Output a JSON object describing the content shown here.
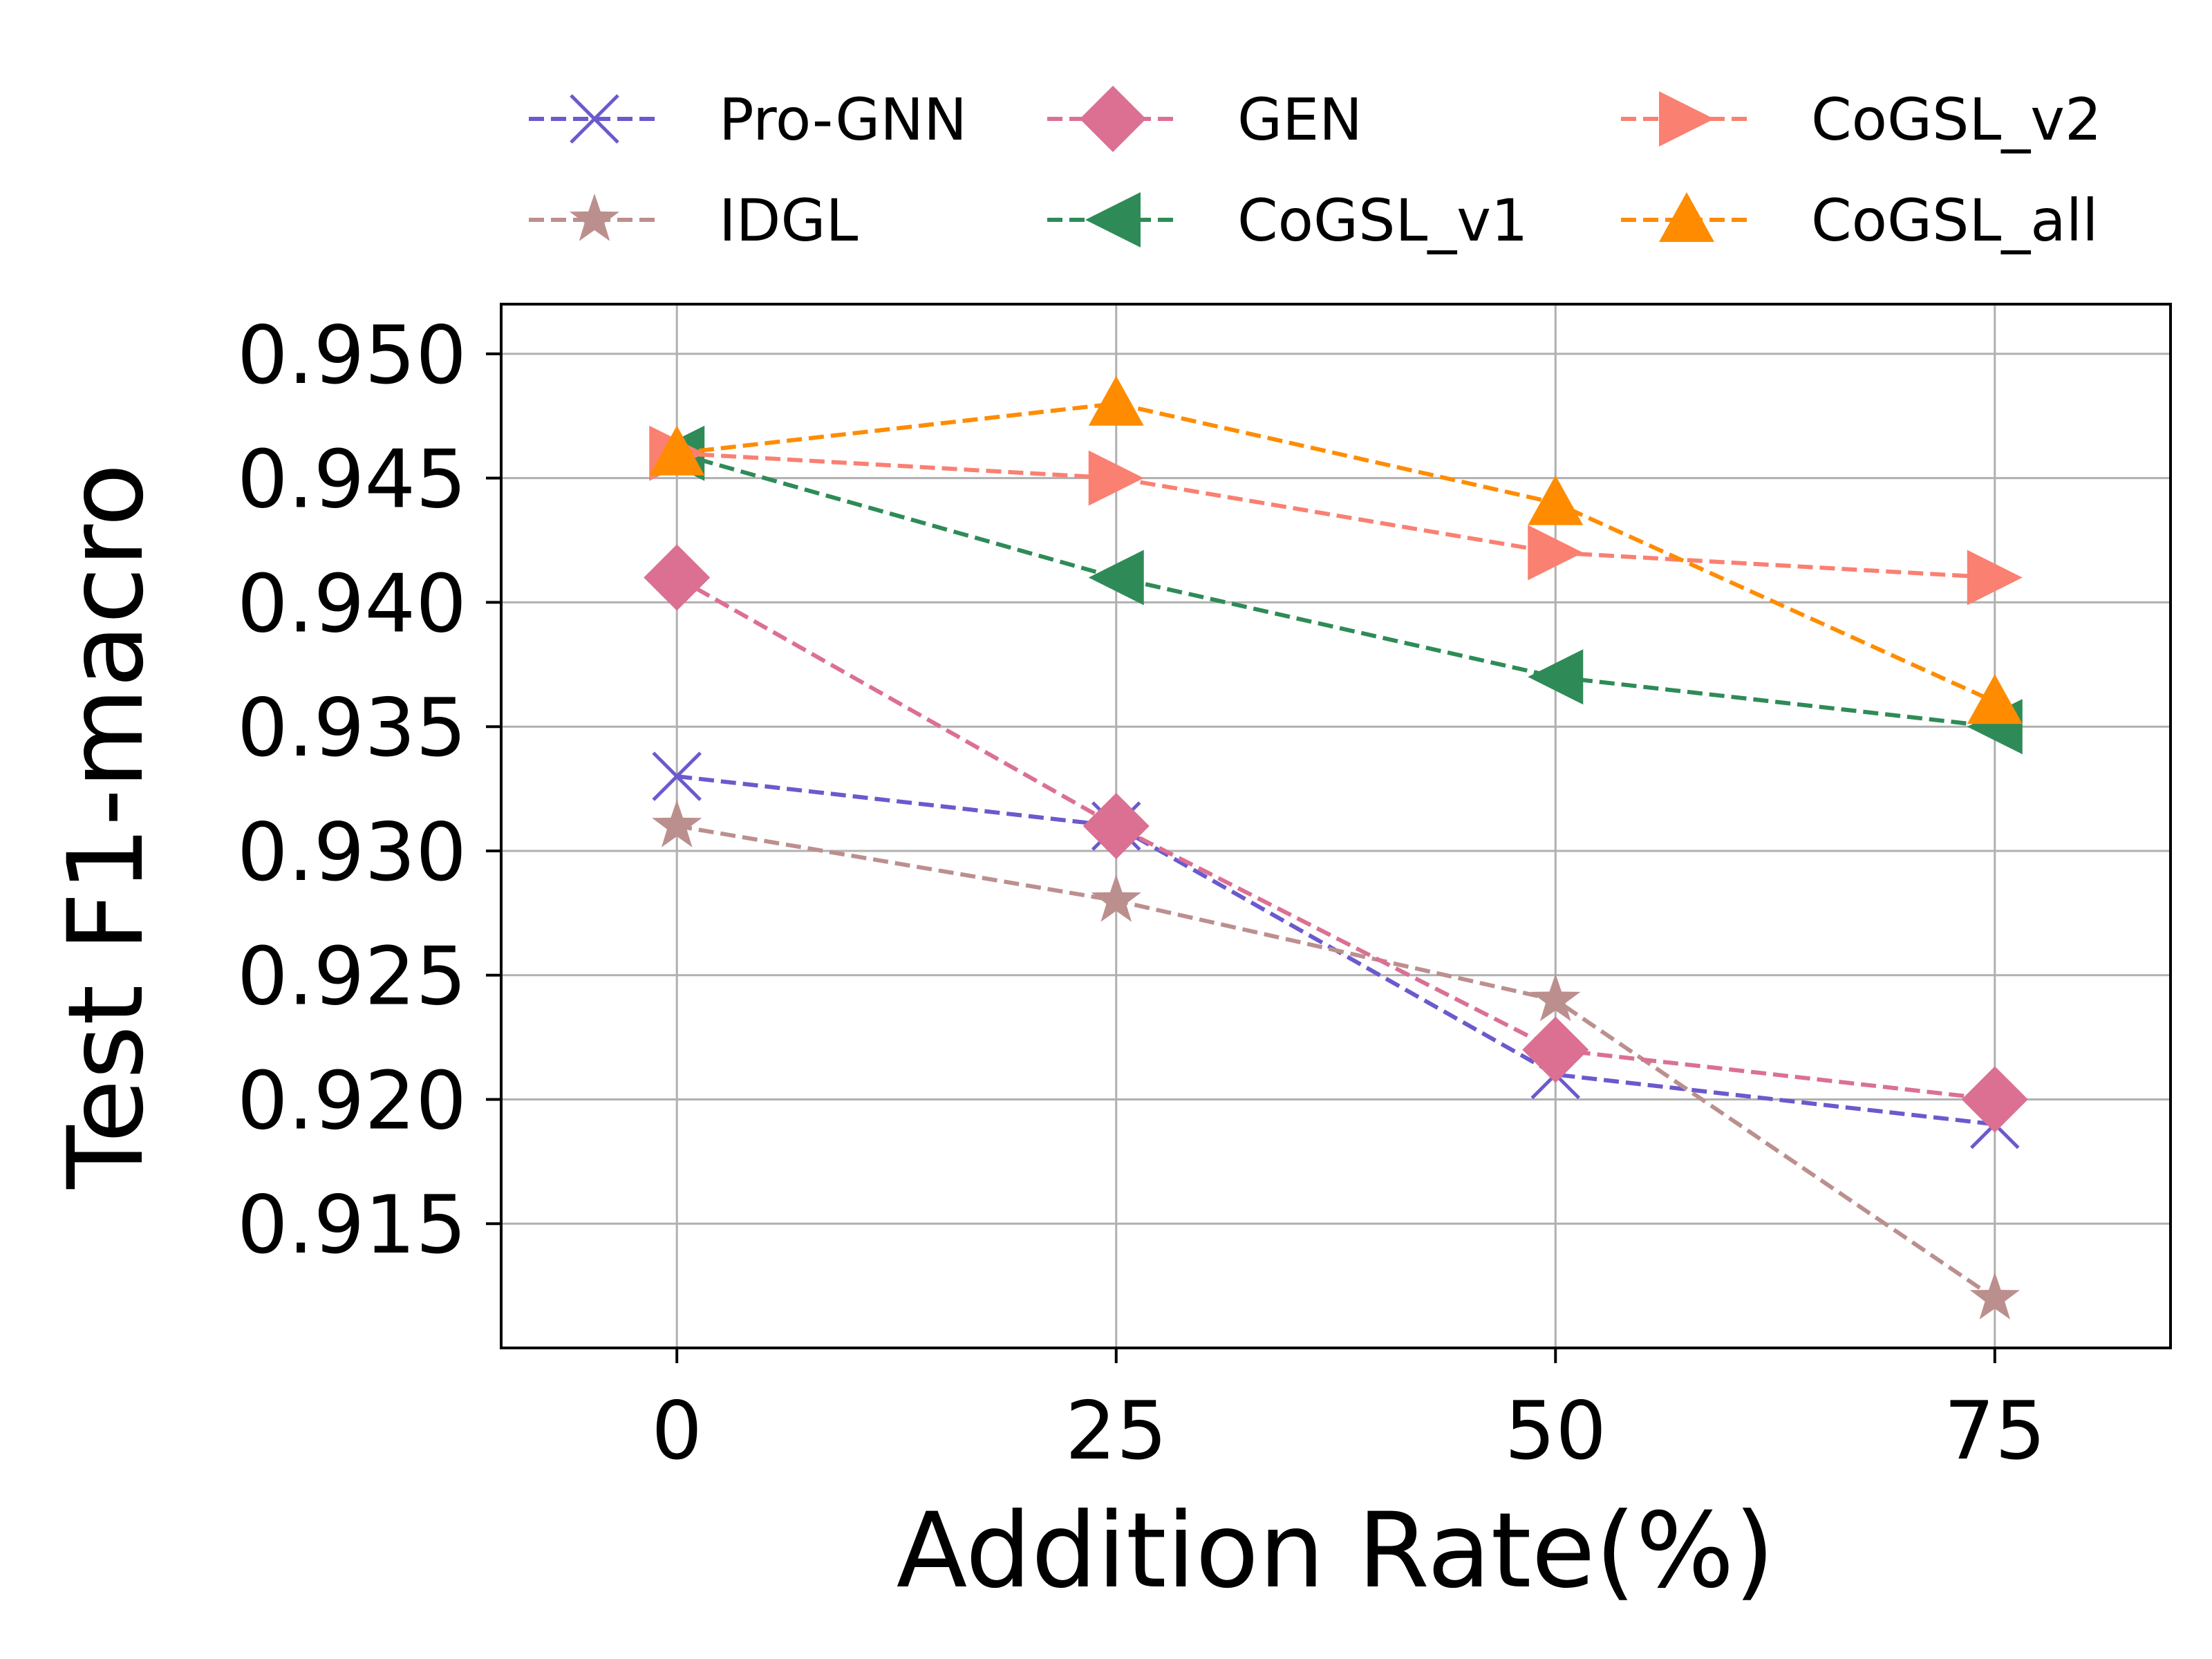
{
  "chart_data": {
    "type": "line",
    "title": "",
    "xlabel": "Addition Rate(%)",
    "ylabel": "Test F1-macro",
    "x": [
      0,
      25,
      50,
      75
    ],
    "xlim": [
      -10,
      85
    ],
    "ylim": [
      0.91,
      0.952
    ],
    "xticks": [
      "0",
      "25",
      "50",
      "75"
    ],
    "yticks": [
      "0.915",
      "0.920",
      "0.925",
      "0.930",
      "0.935",
      "0.940",
      "0.945",
      "0.950"
    ],
    "ytick_values": [
      0.915,
      0.92,
      0.925,
      0.93,
      0.935,
      0.94,
      0.945,
      0.95
    ],
    "grid": true,
    "legend_position": "top",
    "series": [
      {
        "name": "Pro-GNN",
        "color": "#6a5acd",
        "marker": "x",
        "values": [
          0.933,
          0.931,
          0.921,
          0.919
        ]
      },
      {
        "name": "IDGL",
        "color": "#bc8f8f",
        "marker": "star",
        "values": [
          0.931,
          0.928,
          0.924,
          0.912
        ]
      },
      {
        "name": "GEN",
        "color": "#db7093",
        "marker": "diamond",
        "values": [
          0.941,
          0.931,
          0.922,
          0.92
        ]
      },
      {
        "name": "CoGSL_v1",
        "color": "#2e8b57",
        "marker": "triangle-left",
        "values": [
          0.946,
          0.941,
          0.937,
          0.935
        ]
      },
      {
        "name": "CoGSL_v2",
        "color": "#fa8072",
        "marker": "triangle-right",
        "values": [
          0.946,
          0.945,
          0.942,
          0.941
        ]
      },
      {
        "name": "CoGSL_all",
        "color": "#ff8c00",
        "marker": "triangle-up",
        "values": [
          0.946,
          0.948,
          0.944,
          0.936
        ]
      }
    ]
  }
}
